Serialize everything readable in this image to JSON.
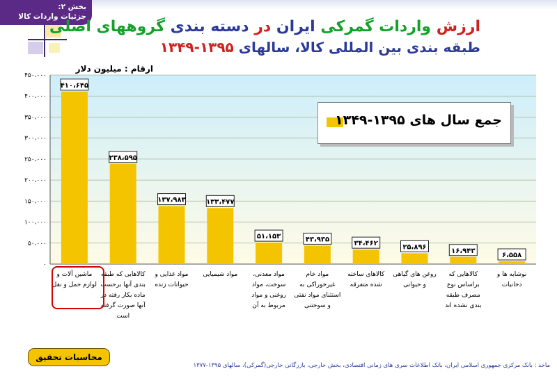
{
  "header": {
    "section_line1": "بخش ۲:",
    "section_line2": "جزئیات واردات کالا"
  },
  "title": {
    "part_a": "ارزش ",
    "part_b": "واردات گمرکی",
    "part_c": "  ایران ",
    "part_d": "در",
    "part_e": " دسته بندی ",
    "part_f": "گروههای اصلی",
    "line2_a": "طبقه بندی بین المللی کالا، سالهای ",
    "line2_b": "۱۳۹۵-۱۳۴۹"
  },
  "unit_label": "ارقام : میلیون دلار",
  "legend": "جمع سال های ۱۳۹۵-۱۳۴۹",
  "buttons": {
    "calc": "محاسبات تحقیق"
  },
  "source": "ماخذ : بانک مرکزی جمهوری اسلامی ایران، بانک اطلاعات سری های زمانی اقتصادی، بخش خارجی، بازرگانی خارجی(گمرکی)، سالهای ۱۳۹۵-۱۳۷۷",
  "colors": {
    "bar": "#f5c400",
    "plot_bg_top": "#cdeefb",
    "plot_bg_bottom": "#fffbe6",
    "title_blue": "#2b3a9a",
    "title_red": "#d12020",
    "title_green": "#14a02a",
    "highlight": "#d40000"
  },
  "chart_data": {
    "type": "bar",
    "categories": [
      "ماشین آلات و لوازم حمل و نقل",
      "کالاهایی که طبقه بندی آنها برحسب ماده بکار رفته در آنها صورت گرفته است",
      "مواد غذایی و حیوانات زنده",
      "مواد شیمیایی",
      "مواد معدنی، سوخت، مواد روغنی و مواد مربوط به آن",
      "مواد خام غیرخوراکی به استثنای مواد نفتی و سوختنی",
      "کالاهای ساخته شده متفرقه",
      "روغن های گیاهی و حیوانی",
      "کالاهایی که براساس نوع مصرف طبقه بندی نشده اند",
      "نوشابه ها و دخانیات"
    ],
    "values": [
      410645,
      238595,
      137983,
      133477,
      51153,
      43935,
      34462,
      25896,
      16943,
      6558
    ],
    "value_labels": [
      "۴۱۰،۶۴۵",
      "۲۳۸،۵۹۵",
      "۱۳۷،۹۸۳",
      "۱۳۳،۴۷۷",
      "۵۱،۱۵۳",
      "۴۳،۹۳۵",
      "۳۴،۴۶۲",
      "۲۵،۸۹۶",
      "۱۶،۹۴۳",
      "۶،۵۵۸"
    ],
    "yticks": [
      0,
      50000,
      100000,
      150000,
      200000,
      250000,
      300000,
      350000,
      400000,
      450000
    ],
    "ytick_labels": [
      "۰",
      "۵۰،۰۰۰",
      "۱۰۰،۰۰۰",
      "۱۵۰،۰۰۰",
      "۲۰۰،۰۰۰",
      "۲۵۰،۰۰۰",
      "۳۰۰،۰۰۰",
      "۳۵۰،۰۰۰",
      "۴۰۰،۰۰۰",
      "۴۵۰،۰۰۰"
    ],
    "ylim": [
      0,
      450000
    ],
    "ylabel": "ارقام : میلیون دلار",
    "series": [
      {
        "name": "جمع سال های ۱۳۹۵-۱۳۴۹",
        "values": [
          410645,
          238595,
          137983,
          133477,
          51153,
          43935,
          34462,
          25896,
          16943,
          6558
        ]
      }
    ],
    "legend_position": "top-right",
    "grid": true
  }
}
